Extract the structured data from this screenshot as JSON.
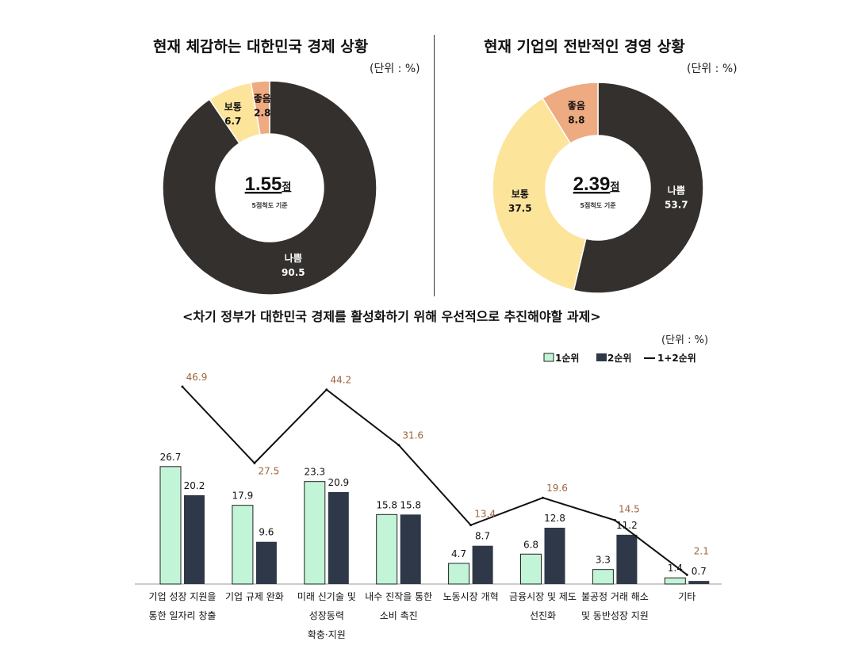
{
  "chart_data": [
    {
      "type": "pie",
      "title": "현재 체감하는 대한민국 경제 상황",
      "unit": "(단위 : %)",
      "center_score": "1.55",
      "center_score_unit": "점",
      "center_note": "5점척도 기준",
      "slices": [
        {
          "label": "나쁨",
          "value": 90.5,
          "color": "#33302e",
          "text_color": "#ffffff"
        },
        {
          "label": "보통",
          "value": 6.7,
          "color": "#fde49b",
          "text_color": "#111111"
        },
        {
          "label": "좋음",
          "value": 2.8,
          "color": "#eeaa80",
          "text_color": "#111111"
        }
      ]
    },
    {
      "type": "pie",
      "title": "현재 기업의 전반적인 경영 상황",
      "unit": "(단위 : %)",
      "center_score": "2.39",
      "center_score_unit": "점",
      "center_note": "5점척도 기준",
      "slices": [
        {
          "label": "나쁨",
          "value": 53.7,
          "color": "#33302e",
          "text_color": "#ffffff"
        },
        {
          "label": "보통",
          "value": 37.5,
          "color": "#fde49b",
          "text_color": "#111111"
        },
        {
          "label": "좋음",
          "value": 8.8,
          "color": "#eeaa80",
          "text_color": "#111111"
        }
      ]
    },
    {
      "type": "bar",
      "title": "<차기 정부가 대한민국 경제를 활성화하기 위해 우선적으로 추진해야할 과제>",
      "unit": "(단위 : %)",
      "legend_position": "top-right",
      "categories": [
        [
          "기업 성장 지원을",
          "통한 일자리 창출"
        ],
        [
          "기업 규제 완화"
        ],
        [
          "미래 신기술 및",
          "성장동력",
          "확충·지원"
        ],
        [
          "내수 진작을 통한",
          "소비 촉진"
        ],
        [
          "노동시장 개혁"
        ],
        [
          "금융시장 및 제도",
          "선진화"
        ],
        [
          "불공정 거래 해소",
          "및 동반성장 지원"
        ],
        [
          "기타"
        ]
      ],
      "series": [
        {
          "name": "1순위",
          "kind": "bar",
          "color": "#c2f5d8",
          "values": [
            26.7,
            17.9,
            23.3,
            15.8,
            4.7,
            6.8,
            3.3,
            1.4
          ]
        },
        {
          "name": "2순위",
          "kind": "bar",
          "color": "#2e3848",
          "values": [
            20.2,
            9.6,
            20.9,
            15.8,
            8.7,
            12.8,
            11.2,
            0.7
          ]
        },
        {
          "name": "1+2순위",
          "kind": "line",
          "color": "#111111",
          "label_color": "#a0643c",
          "values": [
            46.9,
            27.5,
            44.2,
            31.6,
            13.4,
            19.6,
            14.5,
            2.1
          ]
        }
      ]
    }
  ]
}
